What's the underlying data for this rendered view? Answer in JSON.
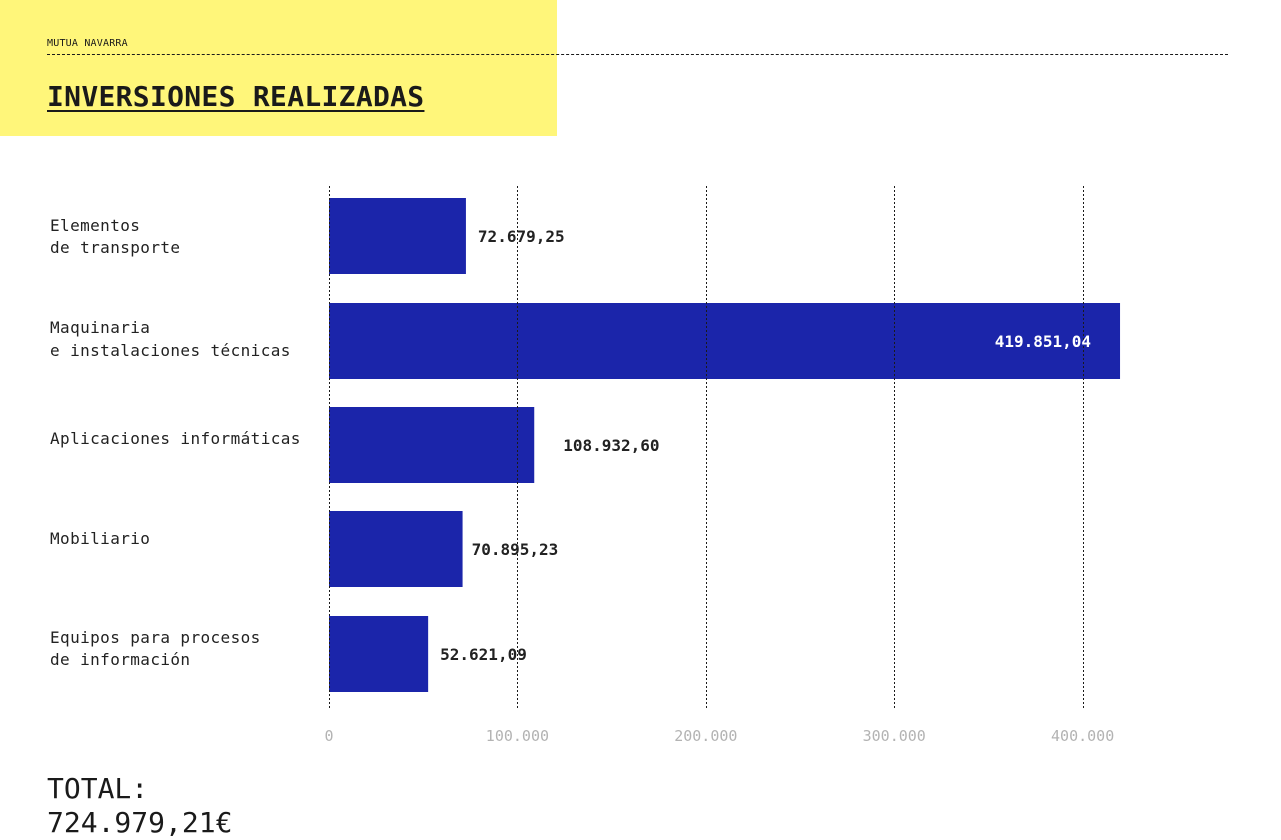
{
  "header": {
    "brand": "MUTUA NAVARRA",
    "title": "INVERSIONES REALIZADAS"
  },
  "colors": {
    "accent": "#fff67a",
    "bar": "#1b25aa",
    "bar_label_dark": "#222222",
    "bar_label_light": "#ffffff",
    "tick_label": "#b3b3b3"
  },
  "chart_data": {
    "type": "bar",
    "orientation": "horizontal",
    "categories": [
      [
        "Elementos",
        "de transporte"
      ],
      [
        "Maquinaria",
        "e instalaciones técnicas"
      ],
      [
        "Aplicaciones informáticas"
      ],
      [
        "Mobiliario"
      ],
      [
        "Equipos para procesos",
        "de información"
      ]
    ],
    "values": [
      72679.25,
      419851.04,
      108932.6,
      70895.23,
      52621.09
    ],
    "data_labels": [
      "72.679,25",
      "419.851,04",
      "108.932,60",
      "70.895,23",
      "52.621,09"
    ],
    "xlim": [
      0,
      440000
    ],
    "x_ticks": [
      0,
      100000,
      200000,
      300000,
      400000
    ],
    "x_tick_labels": [
      "0",
      "100.000",
      "200.000",
      "300.000",
      "400.000"
    ],
    "grid": true,
    "title": "INVERSIONES REALIZADAS"
  },
  "total": {
    "label": "TOTAL:",
    "value": "724.979,21€"
  }
}
